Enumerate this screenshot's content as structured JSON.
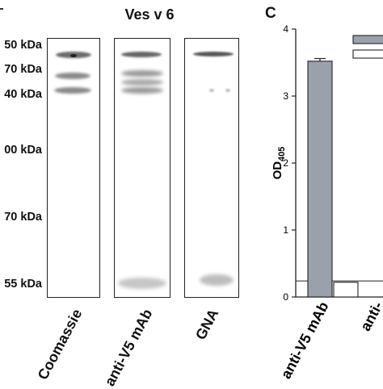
{
  "panel_b": {
    "title": "Ves v 6",
    "mw_labels": [
      "50 kDa",
      "70 kDa",
      "40 kDa",
      "00 kDa",
      "70 kDa",
      "55 kDa"
    ],
    "lanes": [
      "Coomassie",
      "anti-V5 mAb",
      "GNA"
    ]
  },
  "panel_c": {
    "letter": "C"
  },
  "chart_data": {
    "type": "bar",
    "title": "",
    "ylabel_main": "OD",
    "ylabel_sub": "405",
    "ylim": [
      0,
      4
    ],
    "yticks": [
      "0",
      "1",
      "2",
      "3",
      "4"
    ],
    "categories": [
      "anti-V5 mAb",
      "anti-"
    ],
    "series": [
      {
        "name": "",
        "color": "#9aa1ab",
        "values": [
          3.52,
          null
        ],
        "errors": [
          0.04,
          null
        ]
      },
      {
        "name": "",
        "color": "#ffffff",
        "values": [
          0.22,
          0.22
        ],
        "errors": [
          null,
          null
        ]
      }
    ],
    "legend_position": "top-right",
    "grid": false
  }
}
